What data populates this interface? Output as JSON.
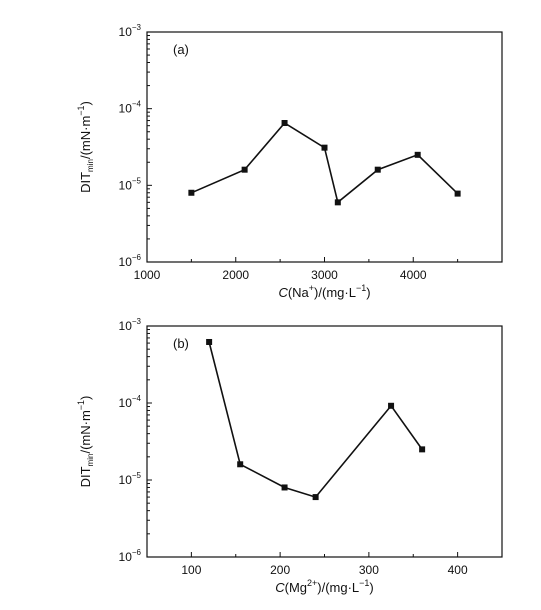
{
  "chart_data": [
    {
      "type": "line",
      "panel_label": "(a)",
      "xlabel": {
        "var": "C",
        "rest": "(Na",
        "sup": "+",
        "tail": ")/(mg·L",
        "unit_sup": "−1",
        "close": ")"
      },
      "ylabel": {
        "base": "DIT",
        "sub": "min",
        "rest": "/(mN·m",
        "unit_sup": "−1",
        "close": ")"
      },
      "xlim": [
        1000,
        5000
      ],
      "xticks": [
        1000,
        2000,
        3000,
        4000
      ],
      "ylim": [
        1e-06,
        0.001
      ],
      "yscale": "log",
      "yticks": [
        {
          "value": 1e-06,
          "base": "10",
          "exp": "−6"
        },
        {
          "value": 1e-05,
          "base": "10",
          "exp": "−5"
        },
        {
          "value": 0.0001,
          "base": "10",
          "exp": "−4"
        },
        {
          "value": 0.001,
          "base": "10",
          "exp": "−3"
        }
      ],
      "series": [
        {
          "marker": "square",
          "x": [
            1500,
            2100,
            2550,
            3000,
            3150,
            3600,
            4050,
            4500
          ],
          "y": [
            8e-06,
            1.6e-05,
            6.5e-05,
            3.1e-05,
            6e-06,
            1.6e-05,
            2.5e-05,
            7.8e-06
          ]
        }
      ]
    },
    {
      "type": "line",
      "panel_label": "(b)",
      "xlabel": {
        "var": "C",
        "rest": "(Mg",
        "sup": "2+",
        "tail": ")/(mg·L",
        "unit_sup": "−1",
        "close": ")"
      },
      "ylabel": {
        "base": "DIT",
        "sub": "min",
        "rest": "/(mN·m",
        "unit_sup": "−1",
        "close": ")"
      },
      "xlim": [
        50,
        450
      ],
      "xticks": [
        100,
        200,
        300,
        400
      ],
      "ylim": [
        1e-06,
        0.001
      ],
      "yscale": "log",
      "yticks": [
        {
          "value": 1e-06,
          "base": "10",
          "exp": "−6"
        },
        {
          "value": 1e-05,
          "base": "10",
          "exp": "−5"
        },
        {
          "value": 0.0001,
          "base": "10",
          "exp": "−4"
        },
        {
          "value": 0.001,
          "base": "10",
          "exp": "−3"
        }
      ],
      "series": [
        {
          "marker": "square",
          "x": [
            120,
            155,
            205,
            240,
            325,
            360
          ],
          "y": [
            0.00062,
            1.6e-05,
            8e-06,
            6e-06,
            9.2e-05,
            2.5e-05
          ]
        }
      ]
    }
  ]
}
